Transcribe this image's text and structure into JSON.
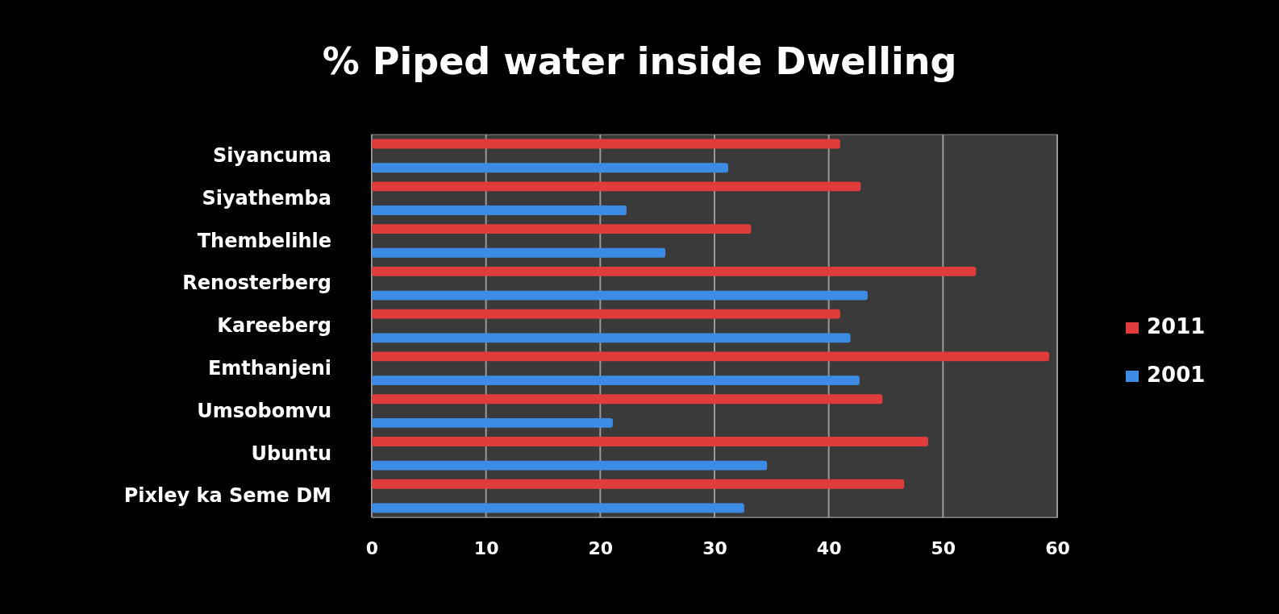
{
  "chart_data": {
    "type": "bar",
    "orientation": "horizontal",
    "title": "% Piped water inside Dwelling",
    "categories": [
      "Siyancuma",
      "Siyathemba",
      "Thembelihle",
      "Renosterberg",
      "Kareeberg",
      "Emthanjeni",
      "Umsobomvu",
      "Ubuntu",
      "Pixley ka Seme DM"
    ],
    "series": [
      {
        "name": "2011",
        "color": "#e03c3c",
        "values": [
          41,
          42.8,
          33.2,
          52.9,
          41,
          59.3,
          44.7,
          48.7,
          46.6
        ]
      },
      {
        "name": "2001",
        "color": "#3c8ce6",
        "values": [
          31.2,
          22.3,
          25.7,
          43.4,
          41.9,
          42.7,
          21.1,
          34.6,
          32.6
        ]
      }
    ],
    "xlim": [
      0,
      60
    ],
    "xticks": [
      0,
      10,
      20,
      30,
      40,
      50,
      60
    ],
    "grid": "x",
    "legend": "right"
  }
}
